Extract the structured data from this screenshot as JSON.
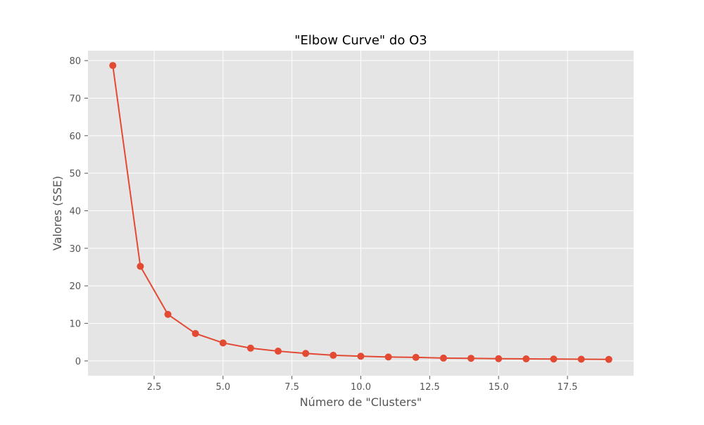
{
  "chart_data": {
    "type": "line",
    "title": "\"Elbow Curve\" do O3",
    "xlabel": "Número de \"Clusters\"",
    "ylabel": "Valores (SSE)",
    "xlim": [
      0.1,
      19.9
    ],
    "ylim": [
      -3.95,
      82.65
    ],
    "xticks": [
      2.5,
      5.0,
      7.5,
      10.0,
      12.5,
      15.0,
      17.5
    ],
    "xtick_labels": [
      "2.5",
      "5.0",
      "7.5",
      "10.0",
      "12.5",
      "15.0",
      "17.5"
    ],
    "yticks": [
      0,
      10,
      20,
      30,
      40,
      50,
      60,
      70,
      80
    ],
    "ytick_labels": [
      "0",
      "10",
      "20",
      "30",
      "40",
      "50",
      "60",
      "70",
      "80"
    ],
    "grid": true,
    "background": "#E5E5E5",
    "series": [
      {
        "color": "#E24A33",
        "marker": "circle",
        "x": [
          1,
          2,
          3,
          4,
          5,
          6,
          7,
          8,
          9,
          10,
          11,
          12,
          13,
          14,
          15,
          16,
          17,
          18,
          19
        ],
        "y": [
          78.7,
          25.2,
          12.4,
          7.3,
          4.8,
          3.4,
          2.6,
          2.0,
          1.5,
          1.25,
          1.05,
          0.95,
          0.75,
          0.7,
          0.6,
          0.55,
          0.5,
          0.45,
          0.4
        ]
      }
    ]
  }
}
